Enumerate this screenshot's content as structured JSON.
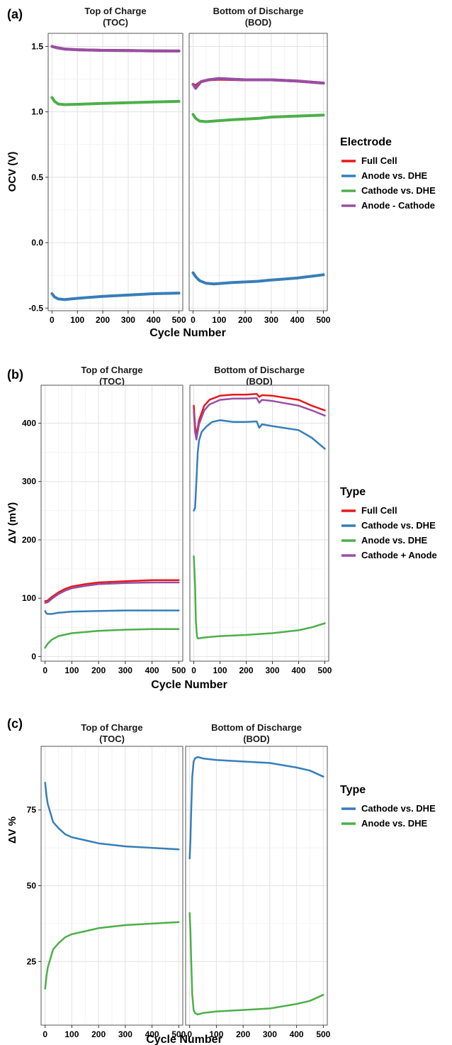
{
  "chart_data": [
    {
      "type": "line",
      "panel_label": "(a)",
      "facets": [
        "Top of Charge\n(TOC)",
        "Bottom of Discharge\n(BOD)"
      ],
      "xlabel": "Cycle Number",
      "ylabel": "OCV (V)",
      "xlim": [
        -15,
        515
      ],
      "ylim": [
        -0.52,
        1.6
      ],
      "xticks": [
        0,
        100,
        200,
        300,
        400,
        500
      ],
      "yticks": [
        -0.5,
        0.0,
        0.5,
        1.0,
        1.5
      ],
      "ytick_labels": [
        "-0.5",
        "0.0",
        "0.5",
        "1.0",
        "1.5"
      ],
      "grid": true,
      "legend": {
        "title": "Electrode",
        "position": "right",
        "items": [
          {
            "name": "Full Cell",
            "color": "#e41a1c"
          },
          {
            "name": "Anode vs. DHE",
            "color": "#377eb8"
          },
          {
            "name": "Cathode vs. DHE",
            "color": "#4daf4a"
          },
          {
            "name": "Anode - Cathode",
            "color": "#984ea3"
          }
        ]
      },
      "line_width": 4,
      "series": [
        {
          "name": "Full Cell",
          "color": "#e41a1c",
          "facet": 0,
          "x": [
            0,
            20,
            50,
            100,
            200,
            300,
            400,
            500
          ],
          "y": [
            1.5,
            1.49,
            1.48,
            1.475,
            1.47,
            1.468,
            1.466,
            1.465
          ]
        },
        {
          "name": "Anode - Cathode",
          "color": "#984ea3",
          "facet": 0,
          "x": [
            0,
            20,
            50,
            100,
            200,
            300,
            400,
            500
          ],
          "y": [
            1.5,
            1.49,
            1.48,
            1.475,
            1.47,
            1.468,
            1.466,
            1.465
          ]
        },
        {
          "name": "Anode vs. DHE",
          "color": "#377eb8",
          "facet": 0,
          "x": [
            0,
            10,
            25,
            50,
            100,
            200,
            300,
            400,
            500
          ],
          "y": [
            -0.39,
            -0.415,
            -0.43,
            -0.435,
            -0.425,
            -0.41,
            -0.4,
            -0.39,
            -0.385
          ]
        },
        {
          "name": "Cathode vs. DHE",
          "color": "#4daf4a",
          "facet": 0,
          "x": [
            0,
            10,
            25,
            50,
            100,
            200,
            300,
            400,
            500
          ],
          "y": [
            1.11,
            1.08,
            1.06,
            1.055,
            1.058,
            1.065,
            1.07,
            1.075,
            1.08
          ]
        },
        {
          "name": "Full Cell",
          "color": "#e41a1c",
          "facet": 1,
          "x": [
            0,
            10,
            30,
            60,
            100,
            200,
            300,
            400,
            500
          ],
          "y": [
            1.21,
            1.2,
            1.23,
            1.245,
            1.25,
            1.245,
            1.245,
            1.235,
            1.22
          ]
        },
        {
          "name": "Anode - Cathode",
          "color": "#984ea3",
          "facet": 1,
          "x": [
            0,
            10,
            30,
            60,
            100,
            200,
            300,
            400,
            500
          ],
          "y": [
            1.21,
            1.18,
            1.23,
            1.245,
            1.255,
            1.245,
            1.245,
            1.235,
            1.22
          ]
        },
        {
          "name": "Anode vs. DHE",
          "color": "#377eb8",
          "facet": 1,
          "x": [
            0,
            10,
            25,
            50,
            80,
            150,
            250,
            300,
            400,
            500
          ],
          "y": [
            -0.23,
            -0.26,
            -0.29,
            -0.31,
            -0.315,
            -0.305,
            -0.295,
            -0.285,
            -0.27,
            -0.245
          ]
        },
        {
          "name": "Cathode vs. DHE",
          "color": "#4daf4a",
          "facet": 1,
          "x": [
            0,
            10,
            25,
            50,
            80,
            150,
            250,
            300,
            400,
            500
          ],
          "y": [
            0.98,
            0.95,
            0.93,
            0.925,
            0.93,
            0.94,
            0.95,
            0.96,
            0.968,
            0.975
          ]
        }
      ]
    },
    {
      "type": "line",
      "panel_label": "(b)",
      "facets": [
        "Top of Charge\n(TOC)",
        "Bottom of Discharge\n(BOD)"
      ],
      "xlabel": "Cycle Number",
      "ylabel": "ΔV (mV)",
      "xlim": [
        -15,
        515
      ],
      "ylim": [
        -8,
        465
      ],
      "xticks": [
        0,
        100,
        200,
        300,
        400,
        500
      ],
      "yticks": [
        0,
        100,
        200,
        300,
        400
      ],
      "ytick_labels": [
        "0",
        "100",
        "200",
        "300",
        "400"
      ],
      "grid": true,
      "legend": {
        "title": "Type",
        "position": "right",
        "items": [
          {
            "name": "Full Cell",
            "color": "#e41a1c"
          },
          {
            "name": "Cathode vs. DHE",
            "color": "#377eb8"
          },
          {
            "name": "Anode vs. DHE",
            "color": "#4daf4a"
          },
          {
            "name": "Cathode + Anode",
            "color": "#984ea3"
          }
        ]
      },
      "line_width": 2.5,
      "series": [
        {
          "name": "Full Cell",
          "color": "#e41a1c",
          "facet": 0,
          "x": [
            0,
            10,
            25,
            50,
            75,
            100,
            150,
            200,
            300,
            400,
            500
          ],
          "y": [
            95,
            96,
            102,
            110,
            116,
            120,
            124,
            127,
            129,
            131,
            131
          ]
        },
        {
          "name": "Cathode + Anode",
          "color": "#984ea3",
          "facet": 0,
          "x": [
            0,
            10,
            25,
            50,
            75,
            100,
            150,
            200,
            300,
            400,
            500
          ],
          "y": [
            92,
            93,
            99,
            107,
            113,
            117,
            121,
            124,
            126,
            127,
            127
          ]
        },
        {
          "name": "Cathode vs. DHE",
          "color": "#377eb8",
          "facet": 0,
          "x": [
            0,
            5,
            10,
            25,
            50,
            100,
            200,
            300,
            400,
            500
          ],
          "y": [
            78,
            74,
            73,
            73,
            75,
            77,
            78,
            79,
            79,
            79
          ]
        },
        {
          "name": "Anode vs. DHE",
          "color": "#4daf4a",
          "facet": 0,
          "x": [
            0,
            10,
            25,
            50,
            100,
            150,
            200,
            300,
            400,
            500
          ],
          "y": [
            15,
            22,
            29,
            35,
            40,
            42,
            44,
            46,
            47,
            47
          ]
        },
        {
          "name": "Full Cell",
          "color": "#e41a1c",
          "facet": 1,
          "x": [
            0,
            5,
            10,
            20,
            40,
            60,
            100,
            150,
            200,
            240,
            250,
            260,
            300,
            400,
            450,
            500
          ],
          "y": [
            430,
            395,
            378,
            405,
            430,
            440,
            447,
            449,
            449,
            450,
            445,
            448,
            447,
            440,
            430,
            422
          ]
        },
        {
          "name": "Cathode + Anode",
          "color": "#984ea3",
          "facet": 1,
          "x": [
            0,
            5,
            10,
            20,
            40,
            60,
            100,
            150,
            200,
            240,
            250,
            260,
            300,
            400,
            450,
            500
          ],
          "y": [
            420,
            385,
            372,
            398,
            422,
            432,
            440,
            442,
            442,
            443,
            435,
            440,
            438,
            430,
            422,
            413
          ]
        },
        {
          "name": "Cathode vs. DHE",
          "color": "#377eb8",
          "facet": 1,
          "x": [
            0,
            5,
            10,
            15,
            20,
            30,
            50,
            70,
            100,
            150,
            200,
            240,
            250,
            260,
            300,
            400,
            450,
            500
          ],
          "y": [
            250,
            255,
            300,
            350,
            370,
            385,
            395,
            402,
            405,
            402,
            402,
            403,
            392,
            398,
            395,
            388,
            375,
            356
          ]
        },
        {
          "name": "Anode vs. DHE",
          "color": "#4daf4a",
          "facet": 1,
          "x": [
            0,
            5,
            8,
            12,
            15,
            20,
            30,
            50,
            100,
            200,
            300,
            400,
            450,
            500
          ],
          "y": [
            172,
            120,
            60,
            35,
            31,
            31,
            32,
            33,
            35,
            37,
            40,
            45,
            50,
            57
          ]
        }
      ]
    },
    {
      "type": "line",
      "panel_label": "(c)",
      "facets": [
        "Top of Charge\n(TOC)",
        "Bottom of Discharge\n(BOD)"
      ],
      "xlabel": "Cycle Number",
      "ylabel": "ΔV %",
      "xlim": [
        -15,
        515
      ],
      "ylim": [
        4,
        96
      ],
      "xticks": [
        0,
        100,
        200,
        300,
        400,
        500
      ],
      "yticks": [
        25,
        50,
        75
      ],
      "ytick_labels": [
        "25",
        "50",
        "75"
      ],
      "grid": true,
      "legend": {
        "title": "Type",
        "position": "right",
        "items": [
          {
            "name": "Cathode vs. DHE",
            "color": "#377eb8"
          },
          {
            "name": "Anode vs. DHE",
            "color": "#4daf4a"
          }
        ]
      },
      "line_width": 2.5,
      "series": [
        {
          "name": "Cathode vs. DHE",
          "color": "#377eb8",
          "facet": 0,
          "x": [
            0,
            5,
            10,
            20,
            30,
            50,
            75,
            100,
            150,
            200,
            300,
            400,
            500
          ],
          "y": [
            84,
            80,
            77,
            74,
            71,
            69,
            67,
            66,
            65,
            64,
            63,
            62.5,
            62
          ]
        },
        {
          "name": "Anode vs. DHE",
          "color": "#4daf4a",
          "facet": 0,
          "x": [
            0,
            5,
            10,
            20,
            30,
            50,
            75,
            100,
            150,
            200,
            300,
            400,
            500
          ],
          "y": [
            16,
            20,
            23,
            26,
            29,
            31,
            33,
            34,
            35,
            36,
            37,
            37.5,
            38
          ]
        },
        {
          "name": "Cathode vs. DHE",
          "color": "#377eb8",
          "facet": 1,
          "x": [
            0,
            3,
            6,
            10,
            15,
            20,
            30,
            50,
            100,
            200,
            300,
            400,
            450,
            500
          ],
          "y": [
            59,
            65,
            75,
            86,
            91,
            92,
            92.5,
            92,
            91.5,
            91,
            90.5,
            89,
            88,
            86
          ]
        },
        {
          "name": "Anode vs. DHE",
          "color": "#4daf4a",
          "facet": 1,
          "x": [
            0,
            3,
            6,
            10,
            15,
            20,
            30,
            50,
            100,
            200,
            300,
            400,
            450,
            500
          ],
          "y": [
            41,
            35,
            25,
            14,
            9,
            8,
            7.5,
            8,
            8.5,
            9,
            9.5,
            11,
            12,
            14
          ]
        }
      ]
    }
  ]
}
